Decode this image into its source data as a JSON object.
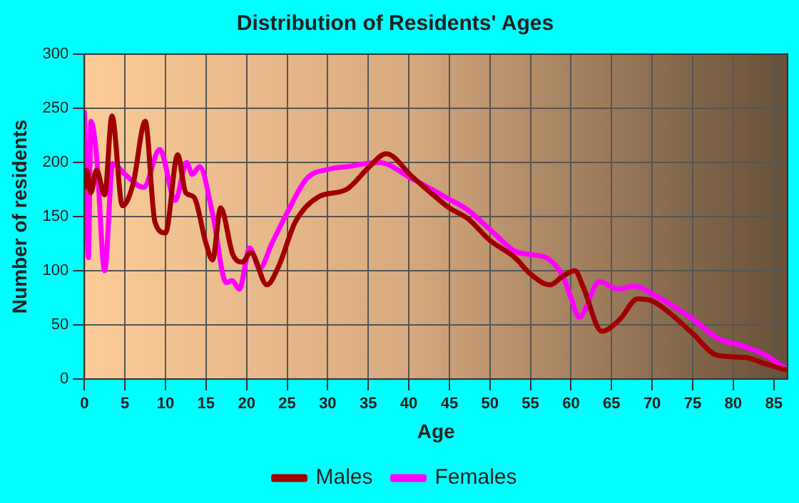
{
  "chart_data": {
    "type": "line",
    "title": "Distribution of Residents' Ages",
    "xlabel": "Age",
    "ylabel": "Number of residents",
    "xlim": [
      0,
      86.7
    ],
    "xticks": [
      0,
      5,
      10,
      15,
      20,
      25,
      30,
      35,
      40,
      45,
      50,
      55,
      60,
      65,
      70,
      75,
      80,
      85
    ],
    "ylim": [
      0,
      300
    ],
    "yticks": [
      0,
      50,
      100,
      150,
      200,
      250,
      300
    ],
    "grid": true,
    "legend": "bottom",
    "marker": "none",
    "line_style": "solid",
    "series": [
      {
        "name": "Males",
        "color": "#a00000",
        "x": [
          0,
          0.3,
          0.8,
          1.5,
          2.5,
          3.4,
          4.7,
          6,
          7.5,
          8.7,
          10,
          11.5,
          12.5,
          13.5,
          15,
          15.8,
          16.8,
          18.3,
          19.5,
          20.5,
          22.5,
          24,
          26,
          28.8,
          32.3,
          35,
          37.2,
          40.4,
          42.7,
          45,
          47.3,
          50,
          53.1,
          55,
          57.4,
          59,
          60.5,
          61.5,
          63.8,
          66,
          68.2,
          70,
          72,
          75,
          78,
          81.4,
          84,
          86.7
        ],
        "values": [
          175,
          193,
          172,
          193,
          170,
          243,
          160,
          180,
          238,
          145,
          135,
          207,
          172,
          168,
          125,
          110,
          158,
          115,
          108,
          117,
          87,
          105,
          145,
          168,
          175,
          195,
          208,
          187,
          172,
          158,
          148,
          128,
          112,
          97,
          87,
          95,
          100,
          85,
          44,
          55,
          74,
          72,
          62,
          42,
          22,
          20,
          14,
          8
        ]
      },
      {
        "name": "Females",
        "color": "#ff00ff",
        "x": [
          0,
          0.5,
          0.8,
          1.5,
          2.5,
          3.5,
          5,
          7.3,
          9.3,
          11.2,
          12.6,
          13.3,
          14.2,
          15.8,
          17.5,
          18.2,
          19.1,
          20.4,
          21.6,
          23.1,
          25.1,
          27.4,
          30.3,
          32.3,
          36.3,
          40.4,
          45,
          47.3,
          50,
          53.1,
          55,
          57.2,
          59,
          60,
          61,
          63.5,
          65.8,
          67.9,
          69.9,
          72.5,
          75.1,
          78,
          81.4,
          84,
          86.7
        ],
        "values": [
          248,
          112,
          238,
          206,
          100,
          199,
          189,
          177,
          212,
          165,
          200,
          189,
          196,
          153,
          89,
          91,
          83,
          121,
          102,
          125,
          155,
          185,
          194,
          196,
          200,
          185,
          166,
          156,
          138,
          118,
          115,
          111,
          95,
          75,
          57,
          90,
          83,
          86,
          79,
          68,
          55,
          38,
          30,
          22,
          8
        ]
      }
    ]
  }
}
